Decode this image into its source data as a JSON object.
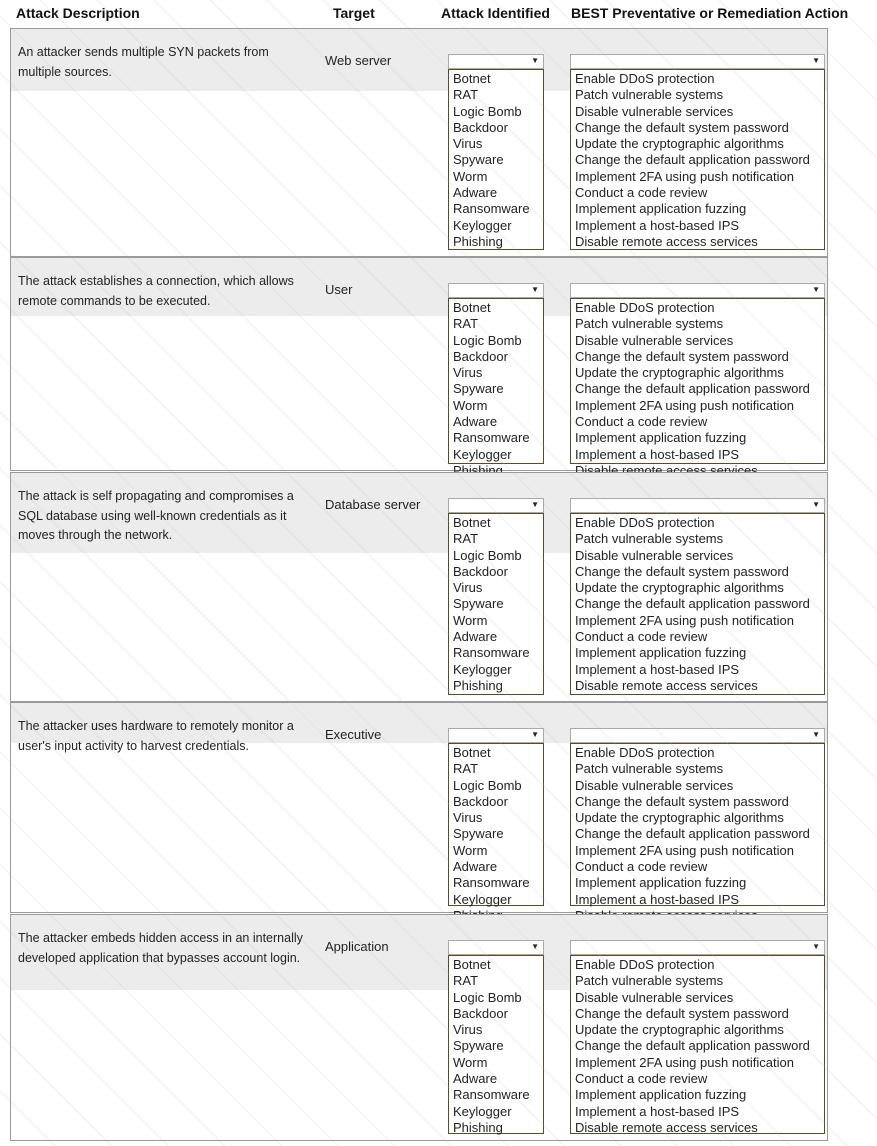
{
  "headers": {
    "description": "Attack Description",
    "target": "Target",
    "attack": "Attack Identified",
    "action": "BEST Preventative or Remediation Action"
  },
  "attack_options": [
    "Botnet",
    "RAT",
    "Logic Bomb",
    "Backdoor",
    "Virus",
    "Spyware",
    "Worm",
    "Adware",
    "Ransomware",
    "Keylogger",
    "Phishing"
  ],
  "action_options": [
    "Enable DDoS protection",
    "Patch vulnerable systems",
    "Disable vulnerable services",
    "Change the default system password",
    "Update the cryptographic algorithms",
    "Change the default application password",
    "Implement 2FA using push notification",
    "Conduct a code review",
    "Implement application fuzzing",
    "Implement a host-based IPS",
    "Disable remote access services"
  ],
  "rows": [
    {
      "description": "An attacker sends multiple SYN packets from multiple sources.",
      "target": "Web server",
      "attack_selected": "",
      "action_selected": ""
    },
    {
      "description": "The attack establishes a connection, which allows remote commands to be executed.",
      "target": "User",
      "attack_selected": "",
      "action_selected": ""
    },
    {
      "description": "The attack is self propagating and compromises a SQL database using well-known credentials as it moves through the network.",
      "target": "Database server",
      "attack_selected": "",
      "action_selected": ""
    },
    {
      "description": "The attacker uses hardware to remotely monitor a user's input activity to harvest credentials.",
      "target": "Executive",
      "attack_selected": "",
      "action_selected": ""
    },
    {
      "description": "The attacker embeds hidden access in an internally developed application that bypasses account login.",
      "target": "Application",
      "attack_selected": "",
      "action_selected": ""
    }
  ],
  "icons": {
    "dropdown": "dropdown-arrow-icon"
  }
}
